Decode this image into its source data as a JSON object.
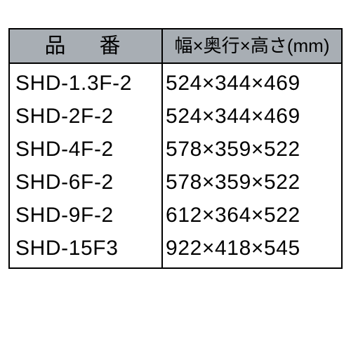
{
  "table": {
    "type": "table",
    "background_color": "#ffffff",
    "border_color": "#000000",
    "header_bg": "#a8aeb4",
    "text_color": "#000000",
    "font_size_header1": 30,
    "font_size_header2": 26,
    "font_size_body": 30,
    "col_widths_pct": [
      46,
      54
    ],
    "columns": [
      {
        "label": "品　番",
        "align": "center"
      },
      {
        "label": "幅×奥行×高さ(mm)",
        "align": "center"
      }
    ],
    "rows": [
      {
        "model": "SHD-1.3F-2",
        "dim": "524×344×469"
      },
      {
        "model": "SHD-2F-2",
        "dim": "524×344×469"
      },
      {
        "model": "SHD-4F-2",
        "dim": "578×359×522"
      },
      {
        "model": "SHD-6F-2",
        "dim": "578×359×522"
      },
      {
        "model": "SHD-9F-2",
        "dim": "612×364×522"
      },
      {
        "model": "SHD-15F3",
        "dim": "922×418×545"
      }
    ]
  }
}
